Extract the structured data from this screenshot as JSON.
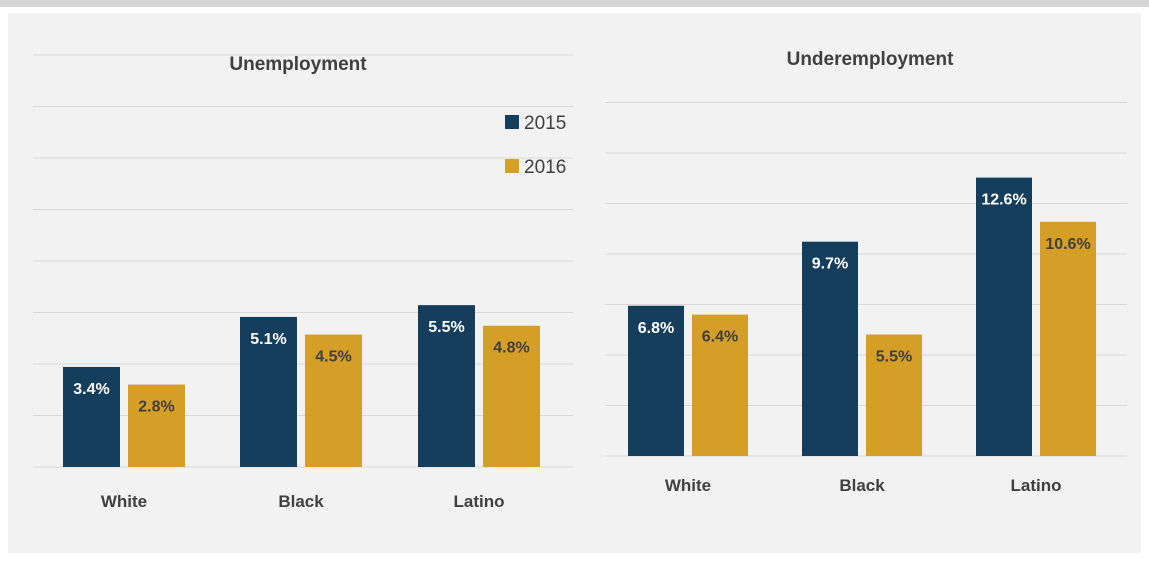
{
  "colors": {
    "series_2015": "#153d5c",
    "series_2016": "#d59e27",
    "label_on_dark": "#ffffff",
    "label_on_gold": "#404040"
  },
  "chart_data": [
    {
      "type": "bar",
      "title": "Unemployment",
      "categories": [
        "White",
        "Black",
        "Latino"
      ],
      "series": [
        {
          "name": "2015",
          "values": [
            3.4,
            5.1,
            5.5
          ],
          "labels": [
            "3.4%",
            "5.1%",
            "5.5%"
          ]
        },
        {
          "name": "2016",
          "values": [
            2.8,
            4.5,
            4.8
          ],
          "labels": [
            "2.8%",
            "4.5%",
            "4.8%"
          ]
        }
      ],
      "ylim": [
        0,
        14
      ],
      "grid": true,
      "legend": "top-right"
    },
    {
      "type": "bar",
      "title": "Underemployment",
      "categories": [
        "White",
        "Black",
        "Latino"
      ],
      "series": [
        {
          "name": "2015",
          "values": [
            6.8,
            9.7,
            12.6
          ],
          "labels": [
            "6.8%",
            "9.7%",
            "12.6%"
          ]
        },
        {
          "name": "2016",
          "values": [
            6.4,
            5.5,
            10.6
          ],
          "labels": [
            "6.4%",
            "5.5%",
            "10.6%"
          ]
        }
      ],
      "ylim": [
        0,
        16
      ],
      "grid": true,
      "legend": "none"
    }
  ]
}
